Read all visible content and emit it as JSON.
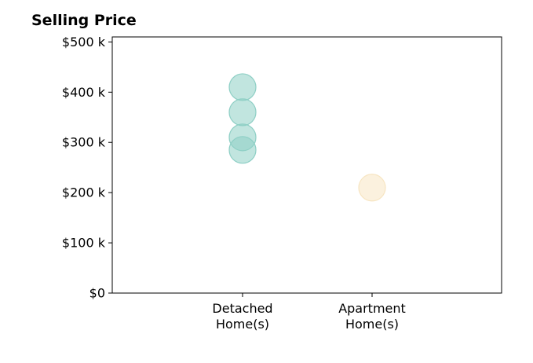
{
  "chart_data": {
    "type": "scatter",
    "title": "Selling Price",
    "xlabel": "",
    "ylabel": "",
    "categories": [
      [
        "Detached",
        "Home(s)"
      ],
      [
        "Apartment",
        "Home(s)"
      ]
    ],
    "ylim": [
      0,
      510000
    ],
    "yticks": [
      0,
      100000,
      200000,
      300000,
      400000,
      500000
    ],
    "ytick_labels": [
      "$0",
      "$100 k",
      "$200 k",
      "$300 k",
      "$400 k",
      "$500 k"
    ],
    "grid": false,
    "series": [
      {
        "category": "Detached Home(s)",
        "color": "#8ecfc5",
        "values": [
          410000,
          360000,
          310000,
          285000
        ]
      },
      {
        "category": "Apartment Home(s)",
        "color": "#f7e5c2",
        "values": [
          210000
        ]
      }
    ]
  }
}
